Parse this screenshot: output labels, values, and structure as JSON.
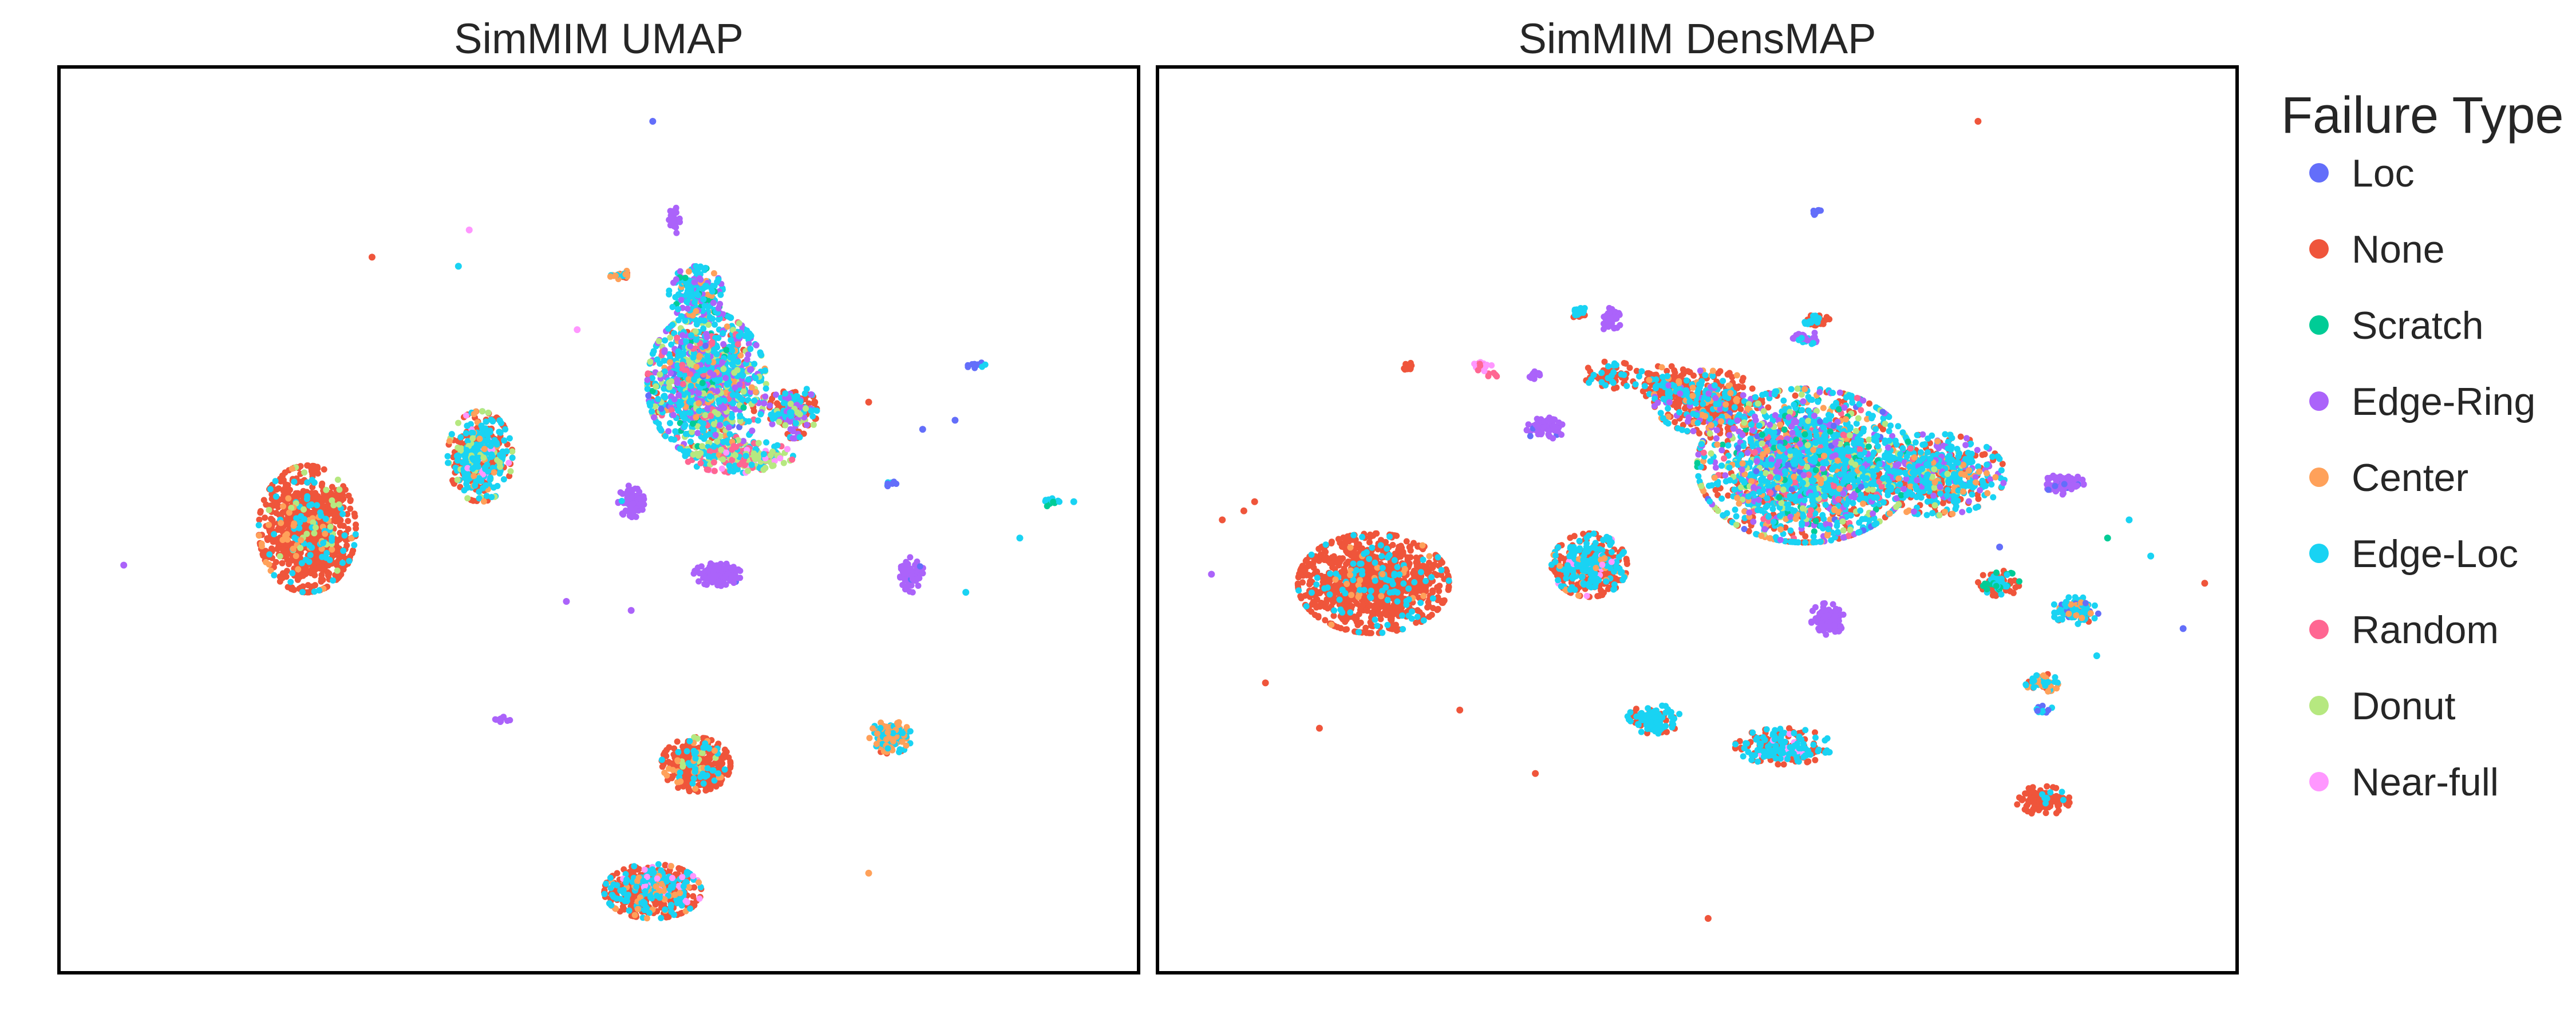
{
  "chart_data": [
    {
      "type": "scatter",
      "title": "SimMIM UMAP",
      "xlabel": "",
      "ylabel": "",
      "xlim": [
        0,
        100
      ],
      "ylim": [
        0,
        100
      ],
      "grid": false,
      "ticks": false,
      "clusters": [
        {
          "x": 23,
          "y": 49,
          "rx": 4.5,
          "ry": 7.0,
          "n": 900,
          "mix": {
            "None": 0.85,
            "Edge-Loc": 0.08,
            "Center": 0.04,
            "Donut": 0.03
          }
        },
        {
          "x": 39,
          "y": 57,
          "rx": 3.0,
          "ry": 5.0,
          "n": 420,
          "mix": {
            "None": 0.45,
            "Edge-Loc": 0.4,
            "Donut": 0.08,
            "Center": 0.04,
            "Near-full": 0.03
          }
        },
        {
          "x": 60,
          "y": 65,
          "rx": 5.5,
          "ry": 8.0,
          "n": 1300,
          "mix": {
            "Edge-Loc": 0.45,
            "Edge-Ring": 0.17,
            "Donut": 0.12,
            "Center": 0.08,
            "None": 0.08,
            "Random": 0.05,
            "Scratch": 0.03,
            "Loc": 0.02
          }
        },
        {
          "x": 68,
          "y": 62,
          "rx": 2.2,
          "ry": 3.0,
          "n": 180,
          "mix": {
            "None": 0.5,
            "Edge-Loc": 0.25,
            "Edge-Ring": 0.15,
            "Donut": 0.1
          }
        },
        {
          "x": 63,
          "y": 57,
          "rx": 5.0,
          "ry": 1.8,
          "n": 260,
          "mix": {
            "Donut": 0.35,
            "Random": 0.3,
            "Edge-Loc": 0.25,
            "Near-full": 0.1
          }
        },
        {
          "x": 59,
          "y": 75,
          "rx": 2.5,
          "ry": 3.0,
          "n": 180,
          "mix": {
            "Edge-Loc": 0.6,
            "Edge-Ring": 0.2,
            "Center": 0.1,
            "Scratch": 0.1
          }
        },
        {
          "x": 61,
          "y": 44,
          "rx": 2.2,
          "ry": 1.3,
          "n": 150,
          "mix": {
            "Edge-Ring": 0.98,
            "Loc": 0.02
          }
        },
        {
          "x": 53,
          "y": 52,
          "rx": 1.2,
          "ry": 1.8,
          "n": 80,
          "mix": {
            "Edge-Ring": 0.95,
            "Edge-Loc": 0.05
          }
        },
        {
          "x": 79,
          "y": 44,
          "rx": 1.1,
          "ry": 2.0,
          "n": 70,
          "mix": {
            "Edge-Ring": 0.95,
            "Loc": 0.05
          }
        },
        {
          "x": 59,
          "y": 23,
          "rx": 3.2,
          "ry": 3.0,
          "n": 420,
          "mix": {
            "None": 0.82,
            "Edge-Loc": 0.1,
            "Center": 0.05,
            "Donut": 0.03
          }
        },
        {
          "x": 55,
          "y": 9,
          "rx": 4.5,
          "ry": 3.0,
          "n": 520,
          "mix": {
            "None": 0.65,
            "Edge-Loc": 0.25,
            "Center": 0.07,
            "Near-full": 0.03
          }
        },
        {
          "x": 77,
          "y": 26,
          "rx": 2.0,
          "ry": 1.8,
          "n": 120,
          "mix": {
            "Center": 0.5,
            "Edge-Loc": 0.35,
            "None": 0.15
          }
        },
        {
          "x": 57,
          "y": 83,
          "rx": 0.6,
          "ry": 1.5,
          "n": 30,
          "mix": {
            "Edge-Ring": 1.0
          }
        },
        {
          "x": 52,
          "y": 77,
          "rx": 1.0,
          "ry": 0.6,
          "n": 25,
          "mix": {
            "Center": 0.5,
            "Edge-Loc": 0.3,
            "None": 0.2
          }
        },
        {
          "x": 92,
          "y": 52,
          "rx": 0.8,
          "ry": 0.6,
          "n": 16,
          "mix": {
            "Scratch": 0.5,
            "Edge-Loc": 0.5
          }
        },
        {
          "x": 85,
          "y": 67,
          "rx": 1.0,
          "ry": 0.4,
          "n": 12,
          "mix": {
            "Loc": 0.6,
            "Edge-Loc": 0.4
          }
        },
        {
          "x": 41,
          "y": 28,
          "rx": 0.8,
          "ry": 0.4,
          "n": 10,
          "mix": {
            "Edge-Ring": 1.0
          }
        },
        {
          "x": 77,
          "y": 54,
          "rx": 0.7,
          "ry": 0.3,
          "n": 8,
          "mix": {
            "Edge-Loc": 0.5,
            "Loc": 0.5
          }
        }
      ],
      "outliers": [
        {
          "x": 55,
          "y": 94,
          "label": "Loc"
        },
        {
          "x": 29,
          "y": 79,
          "label": "None"
        },
        {
          "x": 38,
          "y": 82,
          "label": "Near-full"
        },
        {
          "x": 37,
          "y": 78,
          "label": "Edge-Loc"
        },
        {
          "x": 48,
          "y": 71,
          "label": "Near-full"
        },
        {
          "x": 6,
          "y": 45,
          "label": "Edge-Ring"
        },
        {
          "x": 94,
          "y": 52,
          "label": "Edge-Loc"
        },
        {
          "x": 89,
          "y": 48,
          "label": "Edge-Loc"
        },
        {
          "x": 84,
          "y": 42,
          "label": "Edge-Loc"
        },
        {
          "x": 83,
          "y": 61,
          "label": "Loc"
        },
        {
          "x": 80,
          "y": 60,
          "label": "Loc"
        },
        {
          "x": 47,
          "y": 41,
          "label": "Edge-Ring"
        },
        {
          "x": 53,
          "y": 40,
          "label": "Edge-Ring"
        },
        {
          "x": 75,
          "y": 11,
          "label": "Center"
        },
        {
          "x": 70,
          "y": 63,
          "label": "None"
        },
        {
          "x": 75,
          "y": 63,
          "label": "None"
        }
      ]
    },
    {
      "type": "scatter",
      "title": "SimMIM DensMAP",
      "xlabel": "",
      "ylabel": "",
      "xlim": [
        0,
        100
      ],
      "ylim": [
        0,
        100
      ],
      "grid": false,
      "ticks": false,
      "clusters": [
        {
          "x": 20,
          "y": 43,
          "rx": 7.0,
          "ry": 5.5,
          "n": 1100,
          "mix": {
            "None": 0.88,
            "Edge-Loc": 0.1,
            "Center": 0.02
          }
        },
        {
          "x": 40,
          "y": 45,
          "rx": 3.5,
          "ry": 3.5,
          "n": 420,
          "mix": {
            "None": 0.55,
            "Edge-Loc": 0.38,
            "Center": 0.05,
            "Near-full": 0.02
          }
        },
        {
          "x": 60,
          "y": 56,
          "rx": 10.0,
          "ry": 8.5,
          "n": 2000,
          "mix": {
            "Edge-Loc": 0.42,
            "None": 0.22,
            "Edge-Ring": 0.1,
            "Donut": 0.1,
            "Center": 0.06,
            "Random": 0.05,
            "Scratch": 0.03,
            "Loc": 0.02
          }
        },
        {
          "x": 51,
          "y": 63,
          "rx": 5.0,
          "ry": 3.5,
          "n": 350,
          "mix": {
            "None": 0.6,
            "Edge-Loc": 0.2,
            "Center": 0.1,
            "Edge-Ring": 0.1
          }
        },
        {
          "x": 72,
          "y": 55,
          "rx": 6.5,
          "ry": 4.5,
          "n": 550,
          "mix": {
            "Edge-Loc": 0.5,
            "None": 0.25,
            "Edge-Ring": 0.12,
            "Center": 0.08,
            "Donut": 0.05
          }
        },
        {
          "x": 47,
          "y": 65,
          "rx": 3.0,
          "ry": 2.0,
          "n": 130,
          "mix": {
            "None": 0.75,
            "Edge-Loc": 0.2,
            "Center": 0.05
          }
        },
        {
          "x": 36,
          "y": 60,
          "rx": 1.8,
          "ry": 1.3,
          "n": 70,
          "mix": {
            "Edge-Ring": 0.95,
            "Loc": 0.05
          }
        },
        {
          "x": 84,
          "y": 54,
          "rx": 1.8,
          "ry": 1.2,
          "n": 90,
          "mix": {
            "Edge-Ring": 0.9,
            "Loc": 0.1
          }
        },
        {
          "x": 62,
          "y": 39,
          "rx": 1.6,
          "ry": 1.8,
          "n": 90,
          "mix": {
            "Edge-Ring": 1.0
          }
        },
        {
          "x": 78,
          "y": 43,
          "rx": 2.0,
          "ry": 1.4,
          "n": 90,
          "mix": {
            "None": 0.6,
            "Edge-Loc": 0.25,
            "Scratch": 0.15
          }
        },
        {
          "x": 85,
          "y": 40,
          "rx": 2.2,
          "ry": 1.5,
          "n": 110,
          "mix": {
            "Edge-Loc": 0.65,
            "Center": 0.15,
            "Loc": 0.1,
            "None": 0.1
          }
        },
        {
          "x": 82,
          "y": 32,
          "rx": 1.6,
          "ry": 1.0,
          "n": 60,
          "mix": {
            "Center": 0.4,
            "Edge-Loc": 0.4,
            "None": 0.2
          }
        },
        {
          "x": 82,
          "y": 29,
          "rx": 1.1,
          "ry": 0.5,
          "n": 12,
          "mix": {
            "Edge-Loc": 0.5,
            "Loc": 0.5
          }
        },
        {
          "x": 82,
          "y": 19,
          "rx": 2.5,
          "ry": 1.6,
          "n": 110,
          "mix": {
            "None": 0.9,
            "Edge-Loc": 0.1
          }
        },
        {
          "x": 46,
          "y": 28,
          "rx": 2.5,
          "ry": 1.6,
          "n": 130,
          "mix": {
            "Edge-Loc": 0.65,
            "None": 0.35
          }
        },
        {
          "x": 58,
          "y": 25,
          "rx": 4.5,
          "ry": 2.0,
          "n": 220,
          "mix": {
            "None": 0.5,
            "Edge-Loc": 0.45,
            "Near-full": 0.05
          }
        },
        {
          "x": 42,
          "y": 66,
          "rx": 2.5,
          "ry": 1.5,
          "n": 60,
          "mix": {
            "None": 0.55,
            "Edge-Loc": 0.45
          }
        },
        {
          "x": 42,
          "y": 72,
          "rx": 0.9,
          "ry": 1.4,
          "n": 40,
          "mix": {
            "Edge-Ring": 1.0
          }
        },
        {
          "x": 39,
          "y": 73,
          "rx": 0.7,
          "ry": 0.8,
          "n": 20,
          "mix": {
            "Edge-Loc": 0.6,
            "None": 0.4
          }
        },
        {
          "x": 35,
          "y": 66,
          "rx": 0.9,
          "ry": 0.8,
          "n": 12,
          "mix": {
            "Edge-Ring": 1.0
          }
        },
        {
          "x": 61,
          "y": 72,
          "rx": 1.3,
          "ry": 0.6,
          "n": 40,
          "mix": {
            "None": 0.6,
            "Edge-Loc": 0.4
          }
        },
        {
          "x": 60,
          "y": 70,
          "rx": 1.5,
          "ry": 0.8,
          "n": 30,
          "mix": {
            "Edge-Ring": 0.8,
            "Edge-Loc": 0.2
          }
        },
        {
          "x": 30,
          "y": 67,
          "rx": 1.0,
          "ry": 0.6,
          "n": 20,
          "mix": {
            "Near-full": 0.7,
            "Random": 0.3
          }
        },
        {
          "x": 61,
          "y": 84,
          "rx": 0.8,
          "ry": 0.4,
          "n": 10,
          "mix": {
            "Loc": 1.0
          }
        },
        {
          "x": 31,
          "y": 66,
          "rx": 0.5,
          "ry": 0.3,
          "n": 6,
          "mix": {
            "Random": 1.0
          }
        },
        {
          "x": 23,
          "y": 67,
          "rx": 0.9,
          "ry": 0.4,
          "n": 10,
          "mix": {
            "None": 1.0
          }
        }
      ],
      "outliers": [
        {
          "x": 76,
          "y": 94,
          "label": "None"
        },
        {
          "x": 8,
          "y": 51,
          "label": "None"
        },
        {
          "x": 6,
          "y": 50,
          "label": "None"
        },
        {
          "x": 9,
          "y": 52,
          "label": "None"
        },
        {
          "x": 5,
          "y": 44,
          "label": "Edge-Ring"
        },
        {
          "x": 97,
          "y": 43,
          "label": "None"
        },
        {
          "x": 95,
          "y": 38,
          "label": "Loc"
        },
        {
          "x": 10,
          "y": 32,
          "label": "None"
        },
        {
          "x": 15,
          "y": 27,
          "label": "None"
        },
        {
          "x": 28,
          "y": 29,
          "label": "None"
        },
        {
          "x": 35,
          "y": 22,
          "label": "None"
        },
        {
          "x": 51,
          "y": 6,
          "label": "None"
        },
        {
          "x": 88,
          "y": 48,
          "label": "Scratch"
        },
        {
          "x": 87,
          "y": 35,
          "label": "Edge-Loc"
        },
        {
          "x": 92,
          "y": 46,
          "label": "Edge-Loc"
        },
        {
          "x": 90,
          "y": 50,
          "label": "Edge-Loc"
        },
        {
          "x": 78,
          "y": 47,
          "label": "Loc"
        }
      ]
    }
  ],
  "legend": {
    "title": "Failure Type",
    "position": "right",
    "items": [
      {
        "label": "Loc",
        "color": "#636efa"
      },
      {
        "label": "None",
        "color": "#ef553b"
      },
      {
        "label": "Scratch",
        "color": "#00cc96"
      },
      {
        "label": "Edge-Ring",
        "color": "#ab63fa"
      },
      {
        "label": "Center",
        "color": "#ffa15a"
      },
      {
        "label": "Edge-Loc",
        "color": "#19d3f3"
      },
      {
        "label": "Random",
        "color": "#ff6692"
      },
      {
        "label": "Donut",
        "color": "#b6e880"
      },
      {
        "label": "Near-full",
        "color": "#ff97ff"
      }
    ]
  }
}
